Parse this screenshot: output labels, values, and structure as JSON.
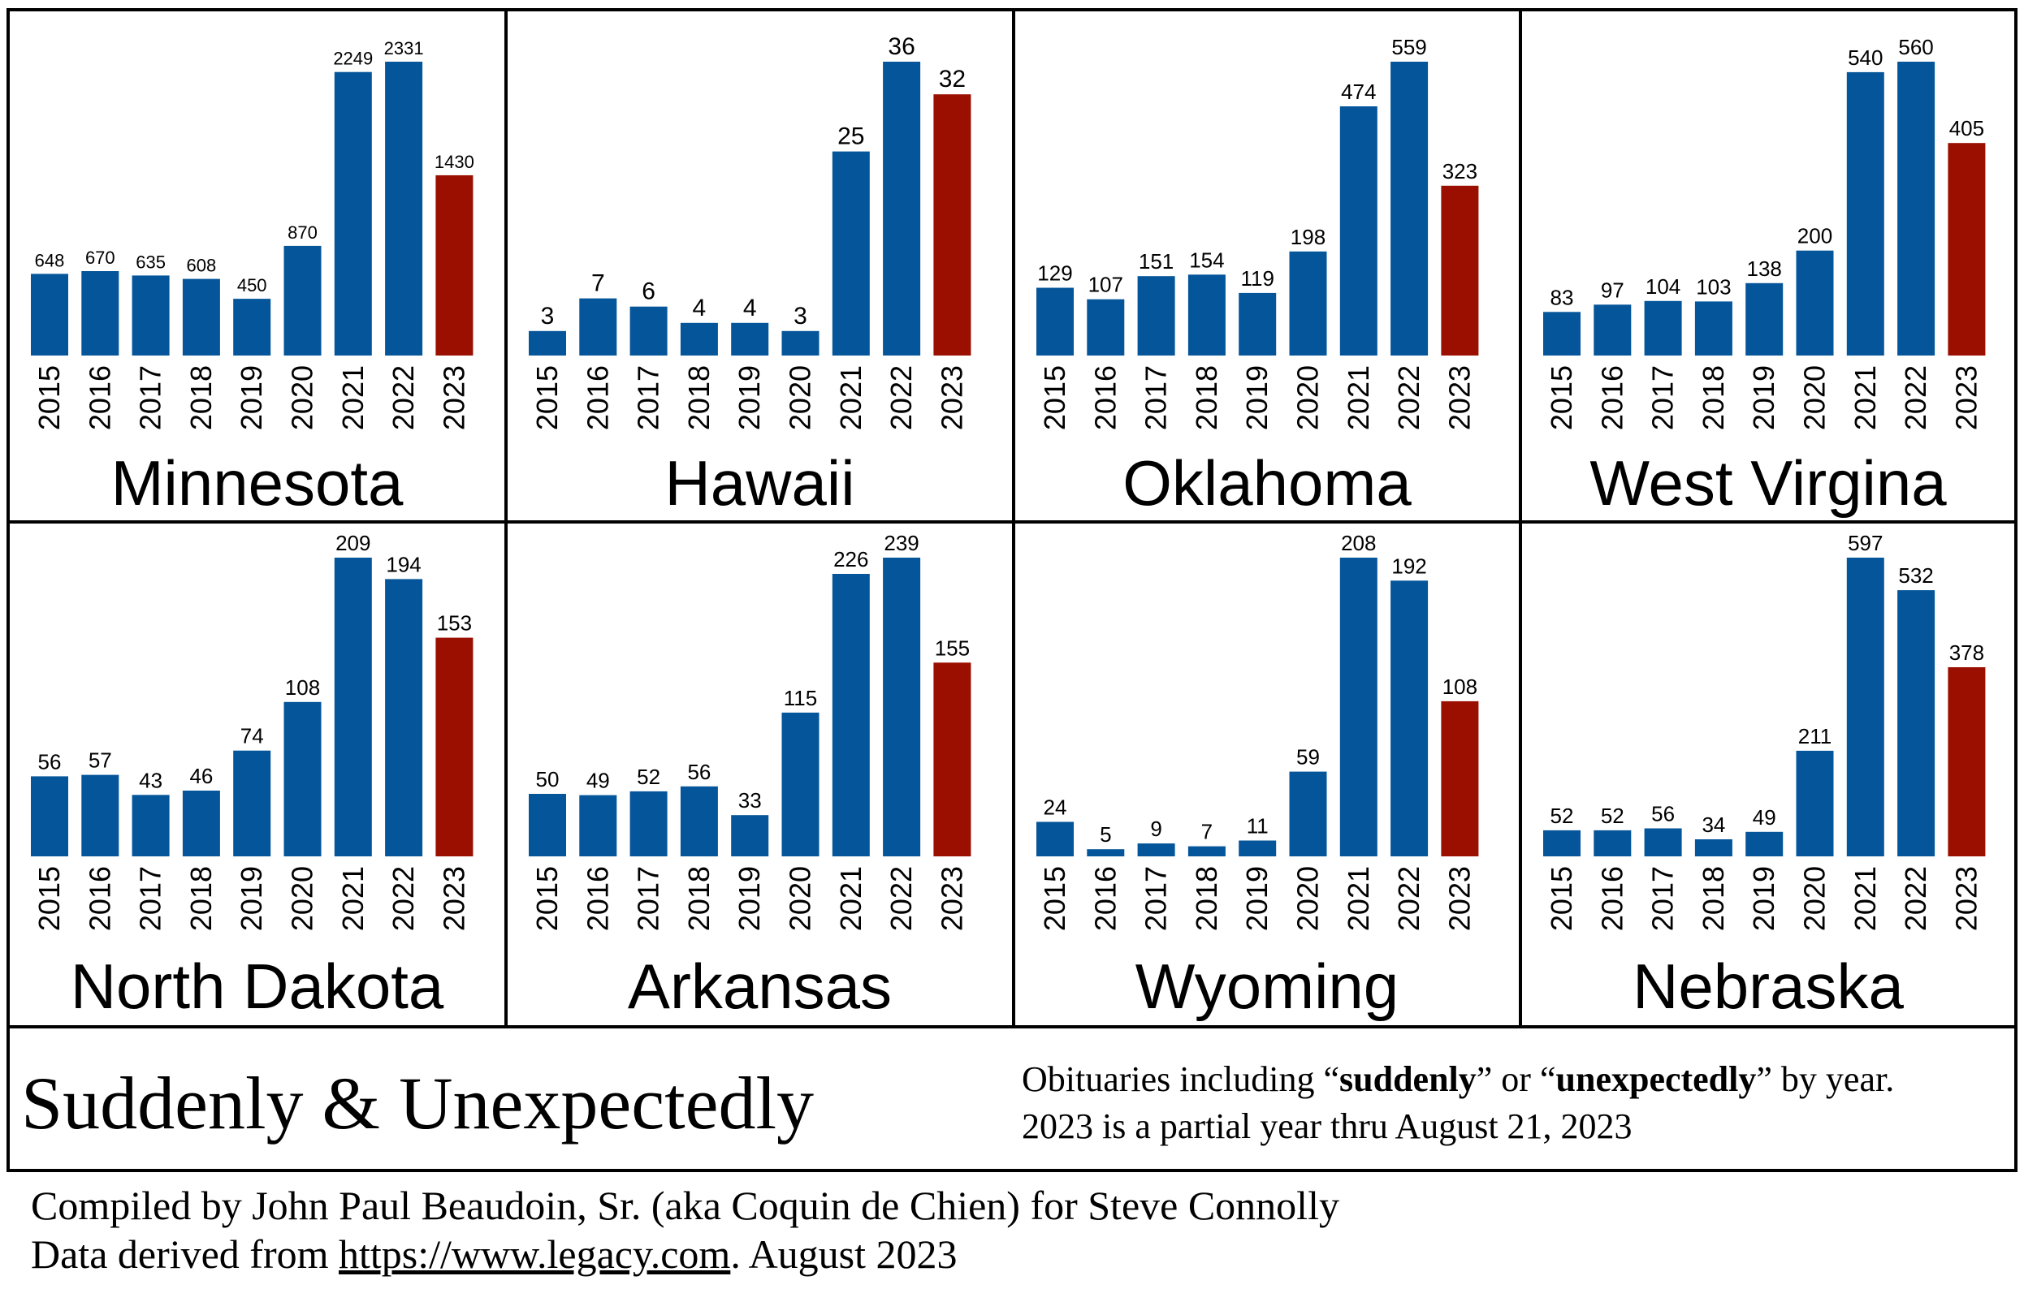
{
  "chart_data": [
    {
      "type": "bar",
      "title": "Minnesota",
      "categories": [
        "2015",
        "2016",
        "2017",
        "2018",
        "2019",
        "2020",
        "2021",
        "2022",
        "2023"
      ],
      "values": [
        648,
        670,
        635,
        608,
        450,
        870,
        2249,
        2331,
        1430
      ],
      "ylim": [
        0,
        2331
      ],
      "colors": {
        "bar": "#04559a",
        "highlight": "#9b0f00"
      }
    },
    {
      "type": "bar",
      "title": "Hawaii",
      "categories": [
        "2015",
        "2016",
        "2017",
        "2018",
        "2019",
        "2020",
        "2021",
        "2022",
        "2023"
      ],
      "values": [
        3,
        7,
        6,
        4,
        4,
        3,
        25,
        36,
        32
      ],
      "ylim": [
        0,
        36
      ],
      "colors": {
        "bar": "#04559a",
        "highlight": "#9b0f00"
      }
    },
    {
      "type": "bar",
      "title": "Oklahoma",
      "categories": [
        "2015",
        "2016",
        "2017",
        "2018",
        "2019",
        "2020",
        "2021",
        "2022",
        "2023"
      ],
      "values": [
        129,
        107,
        151,
        154,
        119,
        198,
        474,
        559,
        323
      ],
      "ylim": [
        0,
        559
      ],
      "colors": {
        "bar": "#04559a",
        "highlight": "#9b0f00"
      }
    },
    {
      "type": "bar",
      "title": "West Virgina",
      "categories": [
        "2015",
        "2016",
        "2017",
        "2018",
        "2019",
        "2020",
        "2021",
        "2022",
        "2023"
      ],
      "values": [
        83,
        97,
        104,
        103,
        138,
        200,
        540,
        560,
        405
      ],
      "ylim": [
        0,
        560
      ],
      "colors": {
        "bar": "#04559a",
        "highlight": "#9b0f00"
      }
    },
    {
      "type": "bar",
      "title": "North Dakota",
      "categories": [
        "2015",
        "2016",
        "2017",
        "2018",
        "2019",
        "2020",
        "2021",
        "2022",
        "2023"
      ],
      "values": [
        56,
        57,
        43,
        46,
        74,
        108,
        209,
        194,
        153
      ],
      "ylim": [
        0,
        209
      ],
      "colors": {
        "bar": "#04559a",
        "highlight": "#9b0f00"
      }
    },
    {
      "type": "bar",
      "title": "Arkansas",
      "categories": [
        "2015",
        "2016",
        "2017",
        "2018",
        "2019",
        "2020",
        "2021",
        "2022",
        "2023"
      ],
      "values": [
        50,
        49,
        52,
        56,
        33,
        115,
        226,
        239,
        155
      ],
      "ylim": [
        0,
        239
      ],
      "colors": {
        "bar": "#04559a",
        "highlight": "#9b0f00"
      }
    },
    {
      "type": "bar",
      "title": "Wyoming",
      "categories": [
        "2015",
        "2016",
        "2017",
        "2018",
        "2019",
        "2020",
        "2021",
        "2022",
        "2023"
      ],
      "values": [
        24,
        5,
        9,
        7,
        11,
        59,
        208,
        192,
        108
      ],
      "ylim": [
        0,
        208
      ],
      "colors": {
        "bar": "#04559a",
        "highlight": "#9b0f00"
      }
    },
    {
      "type": "bar",
      "title": "Nebraska",
      "categories": [
        "2015",
        "2016",
        "2017",
        "2018",
        "2019",
        "2020",
        "2021",
        "2022",
        "2023"
      ],
      "values": [
        52,
        52,
        56,
        34,
        49,
        211,
        597,
        532,
        378
      ],
      "ylim": [
        0,
        597
      ],
      "colors": {
        "bar": "#04559a",
        "highlight": "#9b0f00"
      }
    }
  ],
  "footer": {
    "title": "Suddenly & Unexpectedly",
    "note_line1_parts": [
      "Obituaries including “",
      "suddenly",
      "” or “",
      "unexpectedly",
      "” by year."
    ],
    "note_line2": "2023 is a partial year thru August 21, 2023",
    "credit_line1": "Compiled by John Paul Beaudoin, Sr. (aka Coquin de Chien) for Steve Connolly",
    "credit_line2_prefix": "Data derived from ",
    "credit_line2_link": "https://www.legacy.com",
    "credit_line2_suffix": ". August 2023"
  }
}
